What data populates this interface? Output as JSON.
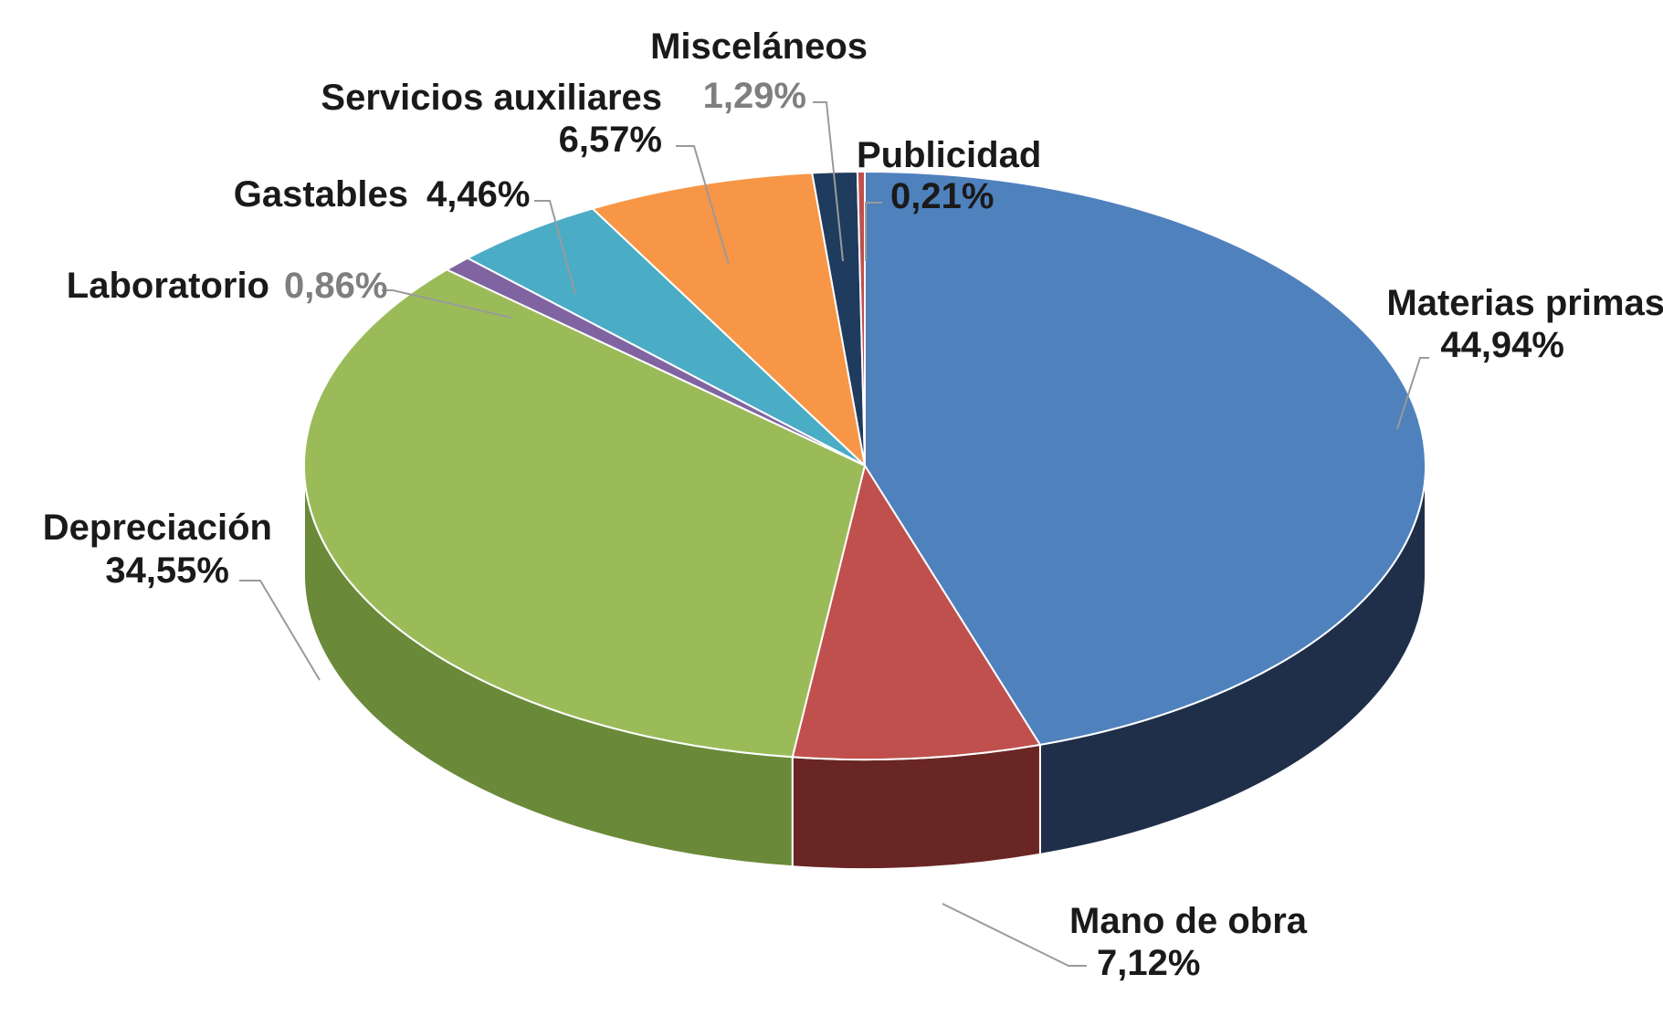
{
  "chart_data": {
    "type": "pie",
    "style": "3d",
    "slices": [
      {
        "label": "Materias primas",
        "value": 44.94,
        "value_text": "44,94%",
        "color": "#4f81bd",
        "side_color": "#1f2f4a"
      },
      {
        "label": "Mano de obra",
        "value": 7.12,
        "value_text": "7,12%",
        "color": "#c0504d",
        "side_color": "#6a2624"
      },
      {
        "label": "Depreciación",
        "value": 34.55,
        "value_text": "34,55%",
        "color": "#9bbb59",
        "side_color": "#6a8a3a"
      },
      {
        "label": "Laboratorio",
        "value": 0.86,
        "value_text": "0,86%",
        "color": "#8064a2",
        "side_color": "#4a3a5e"
      },
      {
        "label": "Gastables",
        "value": 4.46,
        "value_text": "4,46%",
        "color": "#4bacc6",
        "side_color": "#2a6a7a"
      },
      {
        "label": "Servicios auxiliares",
        "value": 6.57,
        "value_text": "6,57%",
        "color": "#f79646",
        "side_color": "#9a5a22"
      },
      {
        "label": "Misceláneos",
        "value": 1.29,
        "value_text": "1,29%",
        "color": "#1f3b5e",
        "side_color": "#101f33"
      },
      {
        "label": "Publicidad",
        "value": 0.21,
        "value_text": "0,21%",
        "color": "#c0504d",
        "side_color": "#6a2624"
      }
    ],
    "legend": "none",
    "data_labels": "outside with leader lines"
  }
}
